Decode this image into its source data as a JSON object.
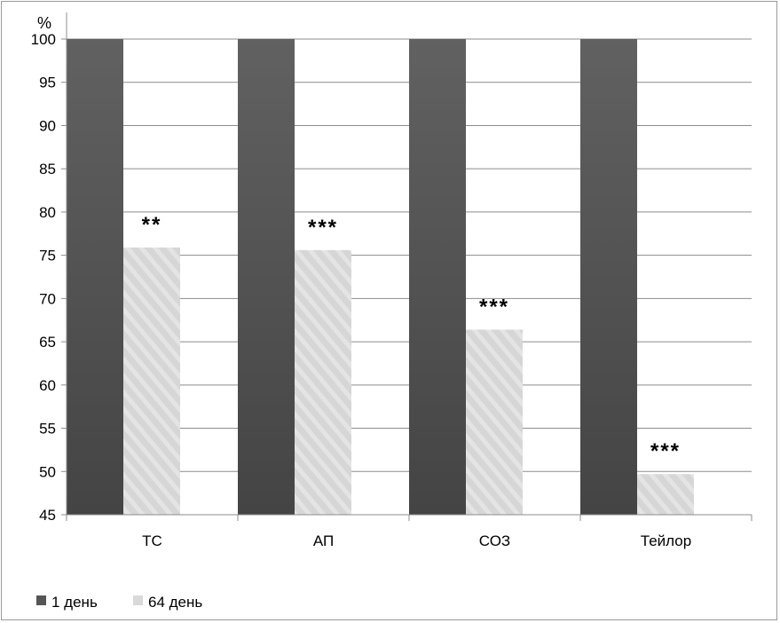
{
  "chart_data": {
    "type": "bar",
    "ylabel": "%",
    "ylim": [
      45,
      100
    ],
    "yticks": [
      45,
      50,
      55,
      60,
      65,
      70,
      75,
      80,
      85,
      90,
      95,
      100
    ],
    "grid": true,
    "legend_position": "bottom-left",
    "categories": [
      "ТС",
      "АП",
      "СОЗ",
      "Тейлор"
    ],
    "series": [
      {
        "name": "1 день",
        "values": [
          100,
          100,
          100,
          100
        ],
        "color": "#555555"
      },
      {
        "name": "64 день",
        "values": [
          75.9,
          75.6,
          66.4,
          49.7
        ],
        "color": "#d9d9d9"
      }
    ],
    "annotations": [
      "**",
      "***",
      "***",
      "***"
    ]
  }
}
